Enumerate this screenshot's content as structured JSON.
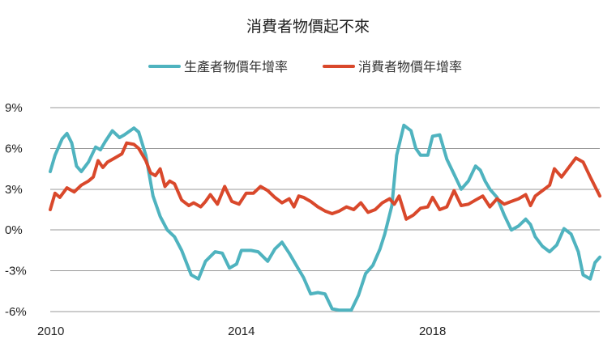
{
  "chart_data": {
    "type": "line",
    "title": "消費者物價起不來",
    "xlabel": "",
    "ylabel": "",
    "ylim": [
      -6,
      9
    ],
    "xlim": [
      2010.0,
      2021.5
    ],
    "grid": true,
    "legend_position": "top-center",
    "y_ticks": [
      {
        "value": 9,
        "label": "9%"
      },
      {
        "value": 6,
        "label": "6%"
      },
      {
        "value": 3,
        "label": "3%"
      },
      {
        "value": 0,
        "label": "0%"
      },
      {
        "value": -3,
        "label": "-3%"
      },
      {
        "value": -6,
        "label": "-6%"
      }
    ],
    "x_ticks": [
      {
        "value": 2010,
        "label": "2010"
      },
      {
        "value": 2014,
        "label": "2014"
      },
      {
        "value": 2018,
        "label": "2018"
      }
    ],
    "series": [
      {
        "name": "生產者物價年增率",
        "color": "#4fb3bf",
        "x": [
          2010.0,
          2010.1,
          2010.25,
          2010.35,
          2010.45,
          2010.55,
          2010.65,
          2010.8,
          2010.95,
          2011.05,
          2011.15,
          2011.3,
          2011.45,
          2011.55,
          2011.75,
          2011.85,
          2012.0,
          2012.15,
          2012.3,
          2012.45,
          2012.6,
          2012.75,
          2012.95,
          2013.1,
          2013.25,
          2013.45,
          2013.6,
          2013.75,
          2013.9,
          2014.0,
          2014.2,
          2014.35,
          2014.55,
          2014.7,
          2014.85,
          2015.0,
          2015.15,
          2015.3,
          2015.45,
          2015.6,
          2015.75,
          2015.9,
          2016.05,
          2016.15,
          2016.3,
          2016.45,
          2016.6,
          2016.75,
          2016.9,
          2017.0,
          2017.15,
          2017.25,
          2017.4,
          2017.55,
          2017.65,
          2017.75,
          2017.9,
          2018.0,
          2018.15,
          2018.3,
          2018.45,
          2018.6,
          2018.75,
          2018.9,
          2019.0,
          2019.1,
          2019.2,
          2019.35,
          2019.5,
          2019.65,
          2019.8,
          2019.95,
          2020.05,
          2020.15,
          2020.3,
          2020.45,
          2020.6,
          2020.75,
          2020.9,
          2021.05,
          2021.15,
          2021.3,
          2021.4,
          2021.5
        ],
        "values": [
          4.3,
          5.5,
          6.7,
          7.1,
          6.4,
          4.7,
          4.3,
          5.0,
          6.1,
          5.9,
          6.5,
          7.3,
          6.8,
          7.0,
          7.5,
          7.2,
          5.5,
          2.5,
          1.0,
          0.0,
          -0.5,
          -1.5,
          -3.3,
          -3.6,
          -2.3,
          -1.6,
          -1.7,
          -2.8,
          -2.5,
          -1.5,
          -1.5,
          -1.6,
          -2.3,
          -1.4,
          -0.9,
          -1.7,
          -2.6,
          -3.5,
          -4.7,
          -4.6,
          -4.7,
          -5.8,
          -5.9,
          -5.9,
          -5.9,
          -4.8,
          -3.2,
          -2.6,
          -1.4,
          -0.3,
          1.8,
          5.5,
          7.7,
          7.3,
          6.0,
          5.5,
          5.5,
          6.9,
          7.0,
          5.2,
          4.1,
          3.0,
          3.6,
          4.7,
          4.4,
          3.6,
          3.0,
          2.4,
          1.1,
          0.0,
          0.3,
          0.8,
          0.4,
          -0.5,
          -1.2,
          -1.6,
          -1.1,
          0.1,
          -0.3,
          -1.6,
          -3.3,
          -3.6,
          -2.4,
          -2.0
        ]
      },
      {
        "name": "消費者物價年增率",
        "color": "#d9482b",
        "x": [
          2010.0,
          2010.1,
          2010.2,
          2010.35,
          2010.5,
          2010.65,
          2010.8,
          2010.9,
          2011.0,
          2011.1,
          2011.2,
          2011.35,
          2011.5,
          2011.6,
          2011.75,
          2011.85,
          2012.0,
          2012.1,
          2012.2,
          2012.3,
          2012.4,
          2012.5,
          2012.6,
          2012.75,
          2012.9,
          2013.0,
          2013.15,
          2013.25,
          2013.35,
          2013.5,
          2013.65,
          2013.8,
          2013.95,
          2014.1,
          2014.25,
          2014.4,
          2014.55,
          2014.7,
          2014.85,
          2015.0,
          2015.1,
          2015.2,
          2015.3,
          2015.45,
          2015.6,
          2015.75,
          2015.9,
          2016.05,
          2016.2,
          2016.35,
          2016.5,
          2016.65,
          2016.8,
          2016.95,
          2017.1,
          2017.2,
          2017.3,
          2017.45,
          2017.6,
          2017.75,
          2017.9,
          2018.0,
          2018.15,
          2018.3,
          2018.45,
          2018.6,
          2018.75,
          2018.9,
          2019.05,
          2019.2,
          2019.35,
          2019.5,
          2019.65,
          2019.8,
          2019.95,
          2020.05,
          2020.15,
          2020.3,
          2020.45,
          2020.55,
          2020.7,
          2020.85,
          2021.0,
          2021.15,
          2021.3,
          2021.5
        ],
        "values": [
          1.5,
          2.7,
          2.4,
          3.1,
          2.8,
          3.3,
          3.6,
          3.9,
          5.1,
          4.6,
          5.0,
          5.3,
          5.6,
          6.4,
          6.3,
          6.0,
          5.1,
          4.2,
          4.0,
          4.5,
          3.2,
          3.6,
          3.4,
          2.2,
          1.8,
          2.0,
          1.7,
          2.1,
          2.6,
          1.9,
          3.2,
          2.1,
          1.9,
          2.7,
          2.7,
          3.2,
          2.9,
          2.4,
          2.0,
          2.3,
          1.7,
          2.5,
          2.4,
          2.1,
          1.7,
          1.4,
          1.2,
          1.4,
          1.7,
          1.5,
          2.0,
          1.3,
          1.5,
          2.0,
          2.3,
          1.9,
          2.5,
          0.8,
          1.1,
          1.6,
          1.7,
          2.4,
          1.5,
          1.7,
          2.9,
          1.8,
          1.9,
          2.2,
          2.5,
          1.7,
          2.3,
          1.9,
          2.1,
          2.3,
          2.6,
          1.8,
          2.5,
          2.9,
          3.3,
          4.5,
          3.9,
          4.6,
          5.3,
          5.0,
          3.9,
          2.5
        ],
        "_note": "values continue in the renderer extension below"
      }
    ]
  }
}
